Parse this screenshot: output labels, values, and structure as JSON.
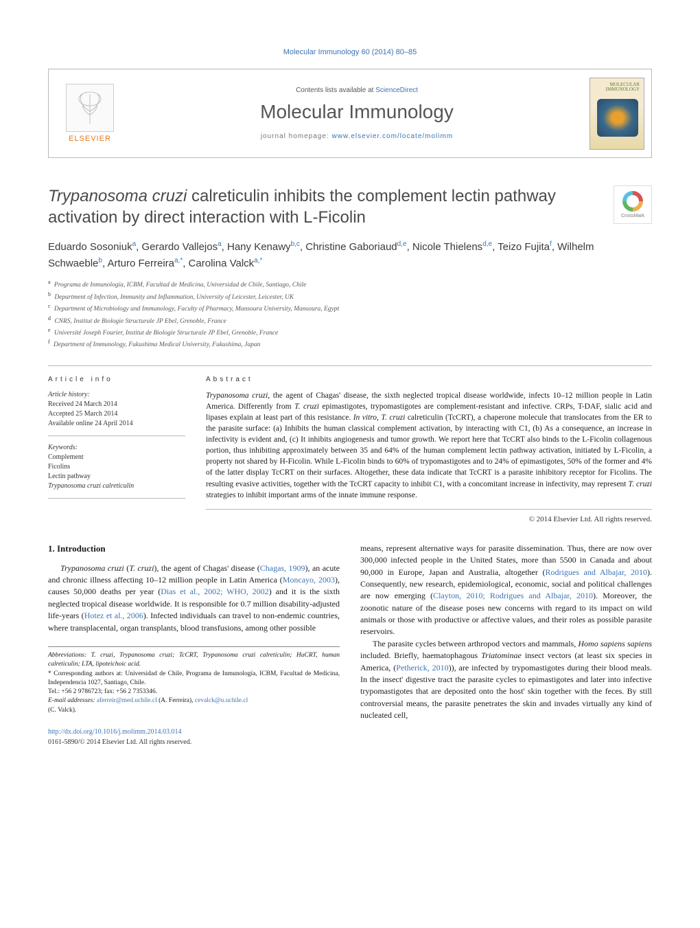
{
  "journal_ref": "Molecular Immunology 60 (2014) 80–85",
  "header": {
    "contents_prefix": "Contents lists available at ",
    "contents_link": "ScienceDirect",
    "journal_name": "Molecular Immunology",
    "homepage_prefix": "journal homepage: ",
    "homepage_url": "www.elsevier.com/locate/molimm",
    "publisher_label": "ELSEVIER",
    "cover_title": "MOLECULAR IMMUNOLOGY"
  },
  "crossmark_label": "CrossMark",
  "title_parts": {
    "italic1": "Trypanosoma cruzi",
    "rest": " calreticulin inhibits the complement lectin pathway activation by direct interaction with L-Ficolin"
  },
  "authors_html": "Eduardo Sosoniuk<sup>a</sup>, Gerardo Vallejos<sup>a</sup>, Hany Kenawy<sup>b,c</sup>, Christine Gaboriaud<sup>d,e</sup>, Nicole Thielens<sup>d,e</sup>, Teizo Fujita<sup>f</sup>, Wilhelm Schwaeble<sup>b</sup>, Arturo Ferreira<sup>a,*</sup>, Carolina Valck<sup>a,*</sup>",
  "affiliations": [
    {
      "sup": "a",
      "text": "Programa de Inmunología, ICBM, Facultad de Medicina, Universidad de Chile, Santiago, Chile"
    },
    {
      "sup": "b",
      "text": "Department of Infection, Immunity and Inflammation, University of Leicester, Leicester, UK"
    },
    {
      "sup": "c",
      "text": "Department of Microbiology and Immunology, Faculty of Pharmacy, Mansoura University, Mansoura, Egypt"
    },
    {
      "sup": "d",
      "text": "CNRS, Institut de Biologie Structurale JP Ebel, Grenoble, France"
    },
    {
      "sup": "e",
      "text": "Université Joseph Fourier, Institut de Biologie Structurale JP Ebel, Grenoble, France"
    },
    {
      "sup": "f",
      "text": "Department of Immunology, Fukushima Medical University, Fukushima, Japan"
    }
  ],
  "article_info": {
    "heading": "article info",
    "history_label": "Article history:",
    "received": "Received 24 March 2014",
    "accepted": "Accepted 25 March 2014",
    "online": "Available online 24 April 2014",
    "keywords_label": "Keywords:",
    "keywords": [
      "Complement",
      "Ficolins",
      "Lectin pathway"
    ],
    "keyword_italic": "Trypanosoma cruzi calreticulin"
  },
  "abstract": {
    "heading": "abstract",
    "text_parts": [
      {
        "italic": true,
        "t": "Trypanosoma cruzi"
      },
      {
        "italic": false,
        "t": ", the agent of Chagas' disease, the sixth neglected tropical disease worldwide, infects 10–12 million people in Latin America. Differently from "
      },
      {
        "italic": true,
        "t": "T. cruzi"
      },
      {
        "italic": false,
        "t": " epimastigotes, trypomastigotes are complement-resistant and infective. CRPs, T-DAF, sialic acid and lipases explain at least part of this resistance. "
      },
      {
        "italic": true,
        "t": "In vitro, T. cruzi"
      },
      {
        "italic": false,
        "t": " calreticulin (TcCRT), a chaperone molecule that translocates from the ER to the parasite surface: (a) Inhibits the human classical complement activation, by interacting with C1, (b) As a consequence, an increase in infectivity is evident and, (c) It inhibits angiogenesis and tumor growth. We report here that TcCRT also binds to the L-Ficolin collagenous portion, thus inhibiting approximately between 35 and 64% of the human complement lectin pathway activation, initiated by L-Ficolin, a property not shared by H-Ficolin. While L-Ficolin binds to 60% of trypomastigotes and to 24% of epimastigotes, 50% of the former and 4% of the latter display TcCRT on their surfaces. Altogether, these data indicate that TcCRT is a parasite inhibitory receptor for Ficolins. The resulting evasive activities, together with the TcCRT capacity to inhibit C1, with a concomitant increase in infectivity, may represent "
      },
      {
        "italic": true,
        "t": "T. cruzi"
      },
      {
        "italic": false,
        "t": " strategies to inhibit important arms of the innate immune response."
      }
    ],
    "copyright": "© 2014 Elsevier Ltd. All rights reserved."
  },
  "section1_heading": "1. Introduction",
  "body_left": {
    "p1_prefix_italic": "Trypanosoma cruzi",
    "p1_paren_italic": "T. cruzi",
    "p1_rest": "), the agent of Chagas' disease (",
    "p1_ref1": "Chagas, 1909",
    "p1_mid1": "), an acute and chronic illness affecting 10–12 million people in Latin America (",
    "p1_ref2": "Moncayo, 2003",
    "p1_mid2": "), causes 50,000 deaths per year (",
    "p1_ref3": "Dias et al., 2002; WHO, 2002",
    "p1_mid3": ") and it is the sixth neglected tropical disease worldwide. It is responsible for 0.7 million disability-adjusted life-years (",
    "p1_ref4": "Hotez et al., 2006",
    "p1_tail": "). Infected individuals can travel to non-endemic countries, where transplacental, organ transplants, blood transfusions, among other possible"
  },
  "body_right": {
    "p1_head": "means, represent alternative ways for parasite dissemination. Thus, there are now over 300,000 infected people in the United States, more than 5500 in Canada and about 90,000 in Europe, Japan and Australia, altogether (",
    "p1_ref1": "Rodrigues and Albajar, 2010",
    "p1_mid1": "). Consequently, new research, epidemiological, economic, social and political challenges are now emerging (",
    "p1_ref2": "Clayton, 2010; Rodrigues and Albajar, 2010",
    "p1_tail1": "). Moreover, the zoonotic nature of the disease poses new concerns with regard to its impact on wild animals or those with productive or affective values, and their roles as possible parasite reservoirs.",
    "p2_head": "The parasite cycles between arthropod vectors and mammals, ",
    "p2_italic1": "Homo sapiens sapiens",
    "p2_mid1": " included. Briefly, haematophagous ",
    "p2_italic2": "Triatominae",
    "p2_mid2": " insect vectors (at least six species in America, (",
    "p2_ref1": "Petherick, 2010",
    "p2_mid3": ")), are infected by trypomastigotes during their blood meals. In the insect' digestive tract the parasite cycles to epimastigotes and later into infective trypomastigotes that are deposited onto the host' skin together with the feces. By still controversial means, the parasite penetrates the skin and invades virtually any kind of nucleated cell,"
  },
  "footnotes": {
    "abbr_label": "Abbreviations:",
    "abbr_text": " T. cruzi, Trypanosoma cruzi; TcCRT, Trypanosoma cruzi calreticulin; HuCRT, human calreticulin; LTA, lipoteichoic acid.",
    "corr_label": "* Corresponding authors at:",
    "corr_text": " Universidad de Chile, Programa de Inmunología, ICBM, Facultad de Medicina, Independencia 1027, Santiago, Chile.",
    "tel": "Tel.: +56 2 9786723; fax: +56 2 7353346.",
    "email_label": "E-mail addresses:",
    "email1": "aferreir@med.uchile.cl",
    "email1_name": " (A. Ferreira), ",
    "email2": "cevalck@u.uchile.cl",
    "email2_name": " (C. Valck)."
  },
  "footer": {
    "doi": "http://dx.doi.org/10.1016/j.molimm.2014.03.014",
    "issn": "0161-5890/© 2014 Elsevier Ltd. All rights reserved."
  }
}
